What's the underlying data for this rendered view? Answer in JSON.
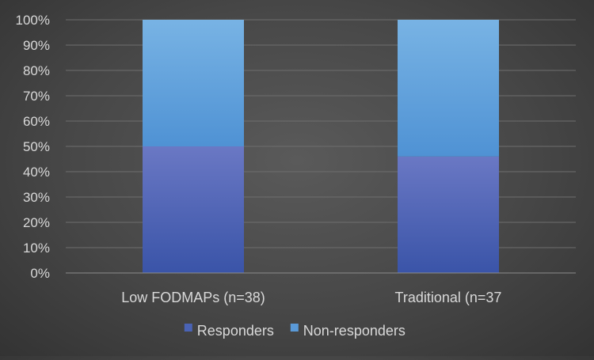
{
  "chart_data": {
    "type": "bar",
    "stacked": true,
    "percent_stacked": true,
    "categories": [
      "Low FODMAPs (n=38)",
      "Traditional (n=37"
    ],
    "series": [
      {
        "name": "Responders",
        "values": [
          50,
          46
        ],
        "color": "#4a63b5"
      },
      {
        "name": "Non-responders",
        "values": [
          50,
          54
        ],
        "color": "#5a9ad8"
      }
    ],
    "ylim": [
      0,
      100
    ],
    "yticks": [
      "0%",
      "10%",
      "20%",
      "30%",
      "40%",
      "50%",
      "60%",
      "70%",
      "80%",
      "90%",
      "100%"
    ],
    "grid": true,
    "legend": "bottom",
    "title": "",
    "xlabel": "",
    "ylabel": ""
  }
}
